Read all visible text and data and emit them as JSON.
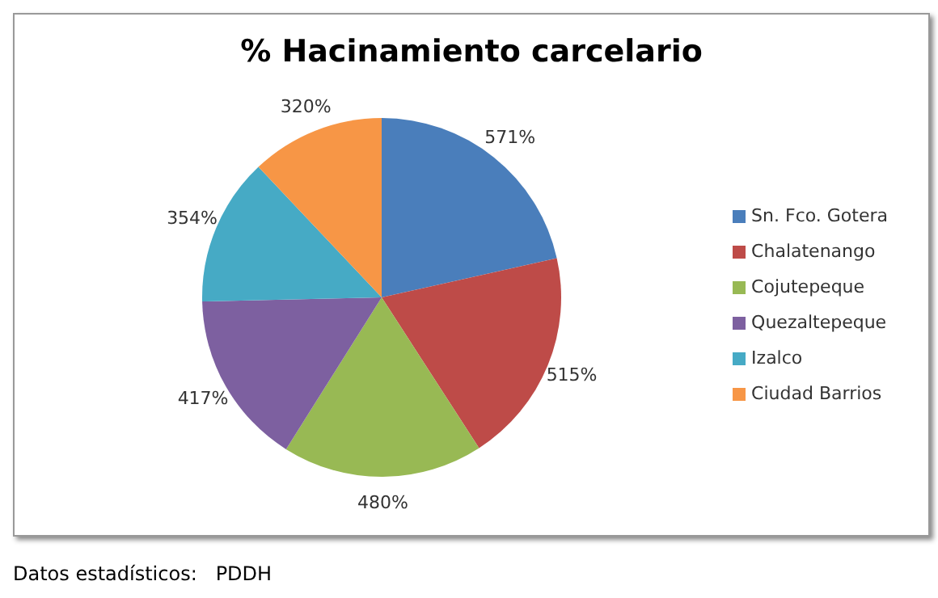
{
  "chart_data": {
    "type": "pie",
    "title": "% Hacinamiento carcelario",
    "categories": [
      "Sn. Fco. Gotera",
      "Chalatenango",
      "Cojutepeque",
      "Quezaltepeque",
      "Izalco",
      "Ciudad Barrios"
    ],
    "values": [
      571,
      515,
      480,
      417,
      354,
      320
    ],
    "value_labels": [
      "571%",
      "515%",
      "480%",
      "417%",
      "354%",
      "320%"
    ],
    "colors": [
      "#4a7ebb",
      "#be4b48",
      "#98b954",
      "#7d60a0",
      "#46aac5",
      "#f79646"
    ],
    "legend": "right",
    "annotations": [
      "Datos estadísticos:   PDDH"
    ]
  }
}
